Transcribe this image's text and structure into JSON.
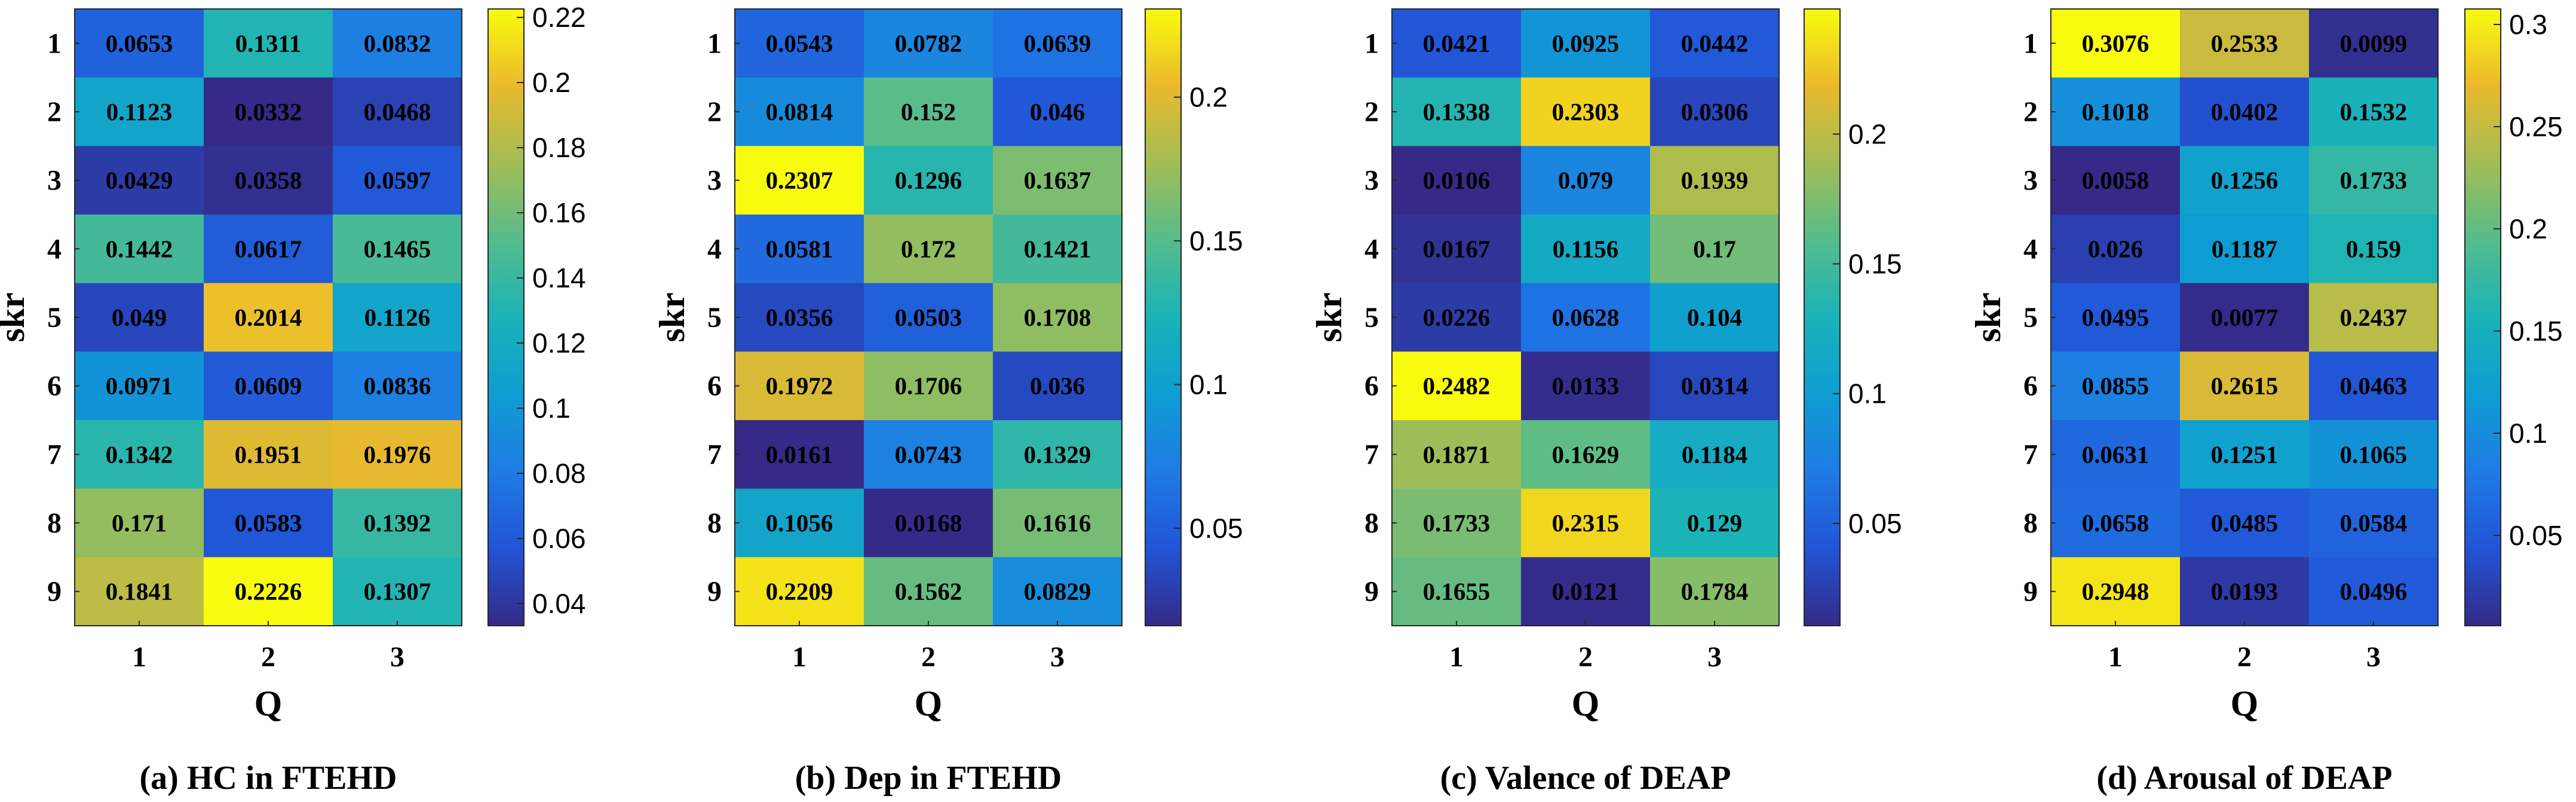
{
  "chart_data": [
    {
      "type": "heatmap",
      "caption": "(a) HC in FTEHD",
      "xlabel": "Q",
      "ylabel": "skr",
      "x_categories": [
        "1",
        "2",
        "3"
      ],
      "y_categories": [
        "1",
        "2",
        "3",
        "4",
        "5",
        "6",
        "7",
        "8",
        "9"
      ],
      "values": [
        [
          "0.0653",
          "0.1311",
          "0.0832"
        ],
        [
          "0.1123",
          "0.0332",
          "0.0468"
        ],
        [
          "0.0429",
          "0.0358",
          "0.0597"
        ],
        [
          "0.1442",
          "0.0617",
          "0.1465"
        ],
        [
          "0.049",
          "0.2014",
          "0.1126"
        ],
        [
          "0.0971",
          "0.0609",
          "0.0836"
        ],
        [
          "0.1342",
          "0.1951",
          "0.1976"
        ],
        [
          "0.171",
          "0.0583",
          "0.1392"
        ],
        [
          "0.1841",
          "0.2226",
          "0.1307"
        ]
      ],
      "colorbar": {
        "range": [
          0.0332,
          0.2226
        ],
        "ticks": [
          "0.04",
          "0.06",
          "0.08",
          "0.1",
          "0.12",
          "0.14",
          "0.16",
          "0.18",
          "0.2",
          "0.22"
        ]
      }
    },
    {
      "type": "heatmap",
      "caption": "(b) Dep in FTEHD",
      "xlabel": "Q",
      "ylabel": "skr",
      "x_categories": [
        "1",
        "2",
        "3"
      ],
      "y_categories": [
        "1",
        "2",
        "3",
        "4",
        "5",
        "6",
        "7",
        "8",
        "9"
      ],
      "values": [
        [
          "0.0543",
          "0.0782",
          "0.0639"
        ],
        [
          "0.0814",
          "0.152",
          "0.046"
        ],
        [
          "0.2307",
          "0.1296",
          "0.1637"
        ],
        [
          "0.0581",
          "0.172",
          "0.1421"
        ],
        [
          "0.0356",
          "0.0503",
          "0.1708"
        ],
        [
          "0.1972",
          "0.1706",
          "0.036"
        ],
        [
          "0.0161",
          "0.0743",
          "0.1329"
        ],
        [
          "0.1056",
          "0.0168",
          "0.1616"
        ],
        [
          "0.2209",
          "0.1562",
          "0.0829"
        ]
      ],
      "colorbar": {
        "range": [
          0.0161,
          0.2307
        ],
        "ticks": [
          "0.05",
          "0.1",
          "0.15",
          "0.2"
        ]
      }
    },
    {
      "type": "heatmap",
      "caption": "(c) Valence of DEAP",
      "xlabel": "Q",
      "ylabel": "skr",
      "x_categories": [
        "1",
        "2",
        "3"
      ],
      "y_categories": [
        "1",
        "2",
        "3",
        "4",
        "5",
        "6",
        "7",
        "8",
        "9"
      ],
      "values": [
        [
          "0.0421",
          "0.0925",
          "0.0442"
        ],
        [
          "0.1338",
          "0.2303",
          "0.0306"
        ],
        [
          "0.0106",
          "0.079",
          "0.1939"
        ],
        [
          "0.0167",
          "0.1156",
          "0.17"
        ],
        [
          "0.0226",
          "0.0628",
          "0.104"
        ],
        [
          "0.2482",
          "0.0133",
          "0.0314"
        ],
        [
          "0.1871",
          "0.1629",
          "0.1184"
        ],
        [
          "0.1733",
          "0.2315",
          "0.129"
        ],
        [
          "0.1655",
          "0.0121",
          "0.1784"
        ]
      ],
      "colorbar": {
        "range": [
          0.0106,
          0.2482
        ],
        "ticks": [
          "0.05",
          "0.1",
          "0.15",
          "0.2"
        ]
      }
    },
    {
      "type": "heatmap",
      "caption": "(d) Arousal of DEAP",
      "xlabel": "Q",
      "ylabel": "skr",
      "x_categories": [
        "1",
        "2",
        "3"
      ],
      "y_categories": [
        "1",
        "2",
        "3",
        "4",
        "5",
        "6",
        "7",
        "8",
        "9"
      ],
      "values": [
        [
          "0.3076",
          "0.2533",
          "0.0099"
        ],
        [
          "0.1018",
          "0.0402",
          "0.1532"
        ],
        [
          "0.0058",
          "0.1256",
          "0.1733"
        ],
        [
          "0.026",
          "0.1187",
          "0.159"
        ],
        [
          "0.0495",
          "0.0077",
          "0.2437"
        ],
        [
          "0.0855",
          "0.2615",
          "0.0463"
        ],
        [
          "0.0631",
          "0.1251",
          "0.1065"
        ],
        [
          "0.0658",
          "0.0485",
          "0.0584"
        ],
        [
          "0.2948",
          "0.0193",
          "0.0496"
        ]
      ],
      "colorbar": {
        "range": [
          0.0058,
          0.3076
        ],
        "ticks": [
          "0.05",
          "0.1",
          "0.15",
          "0.2",
          "0.25",
          "0.3"
        ]
      }
    }
  ]
}
